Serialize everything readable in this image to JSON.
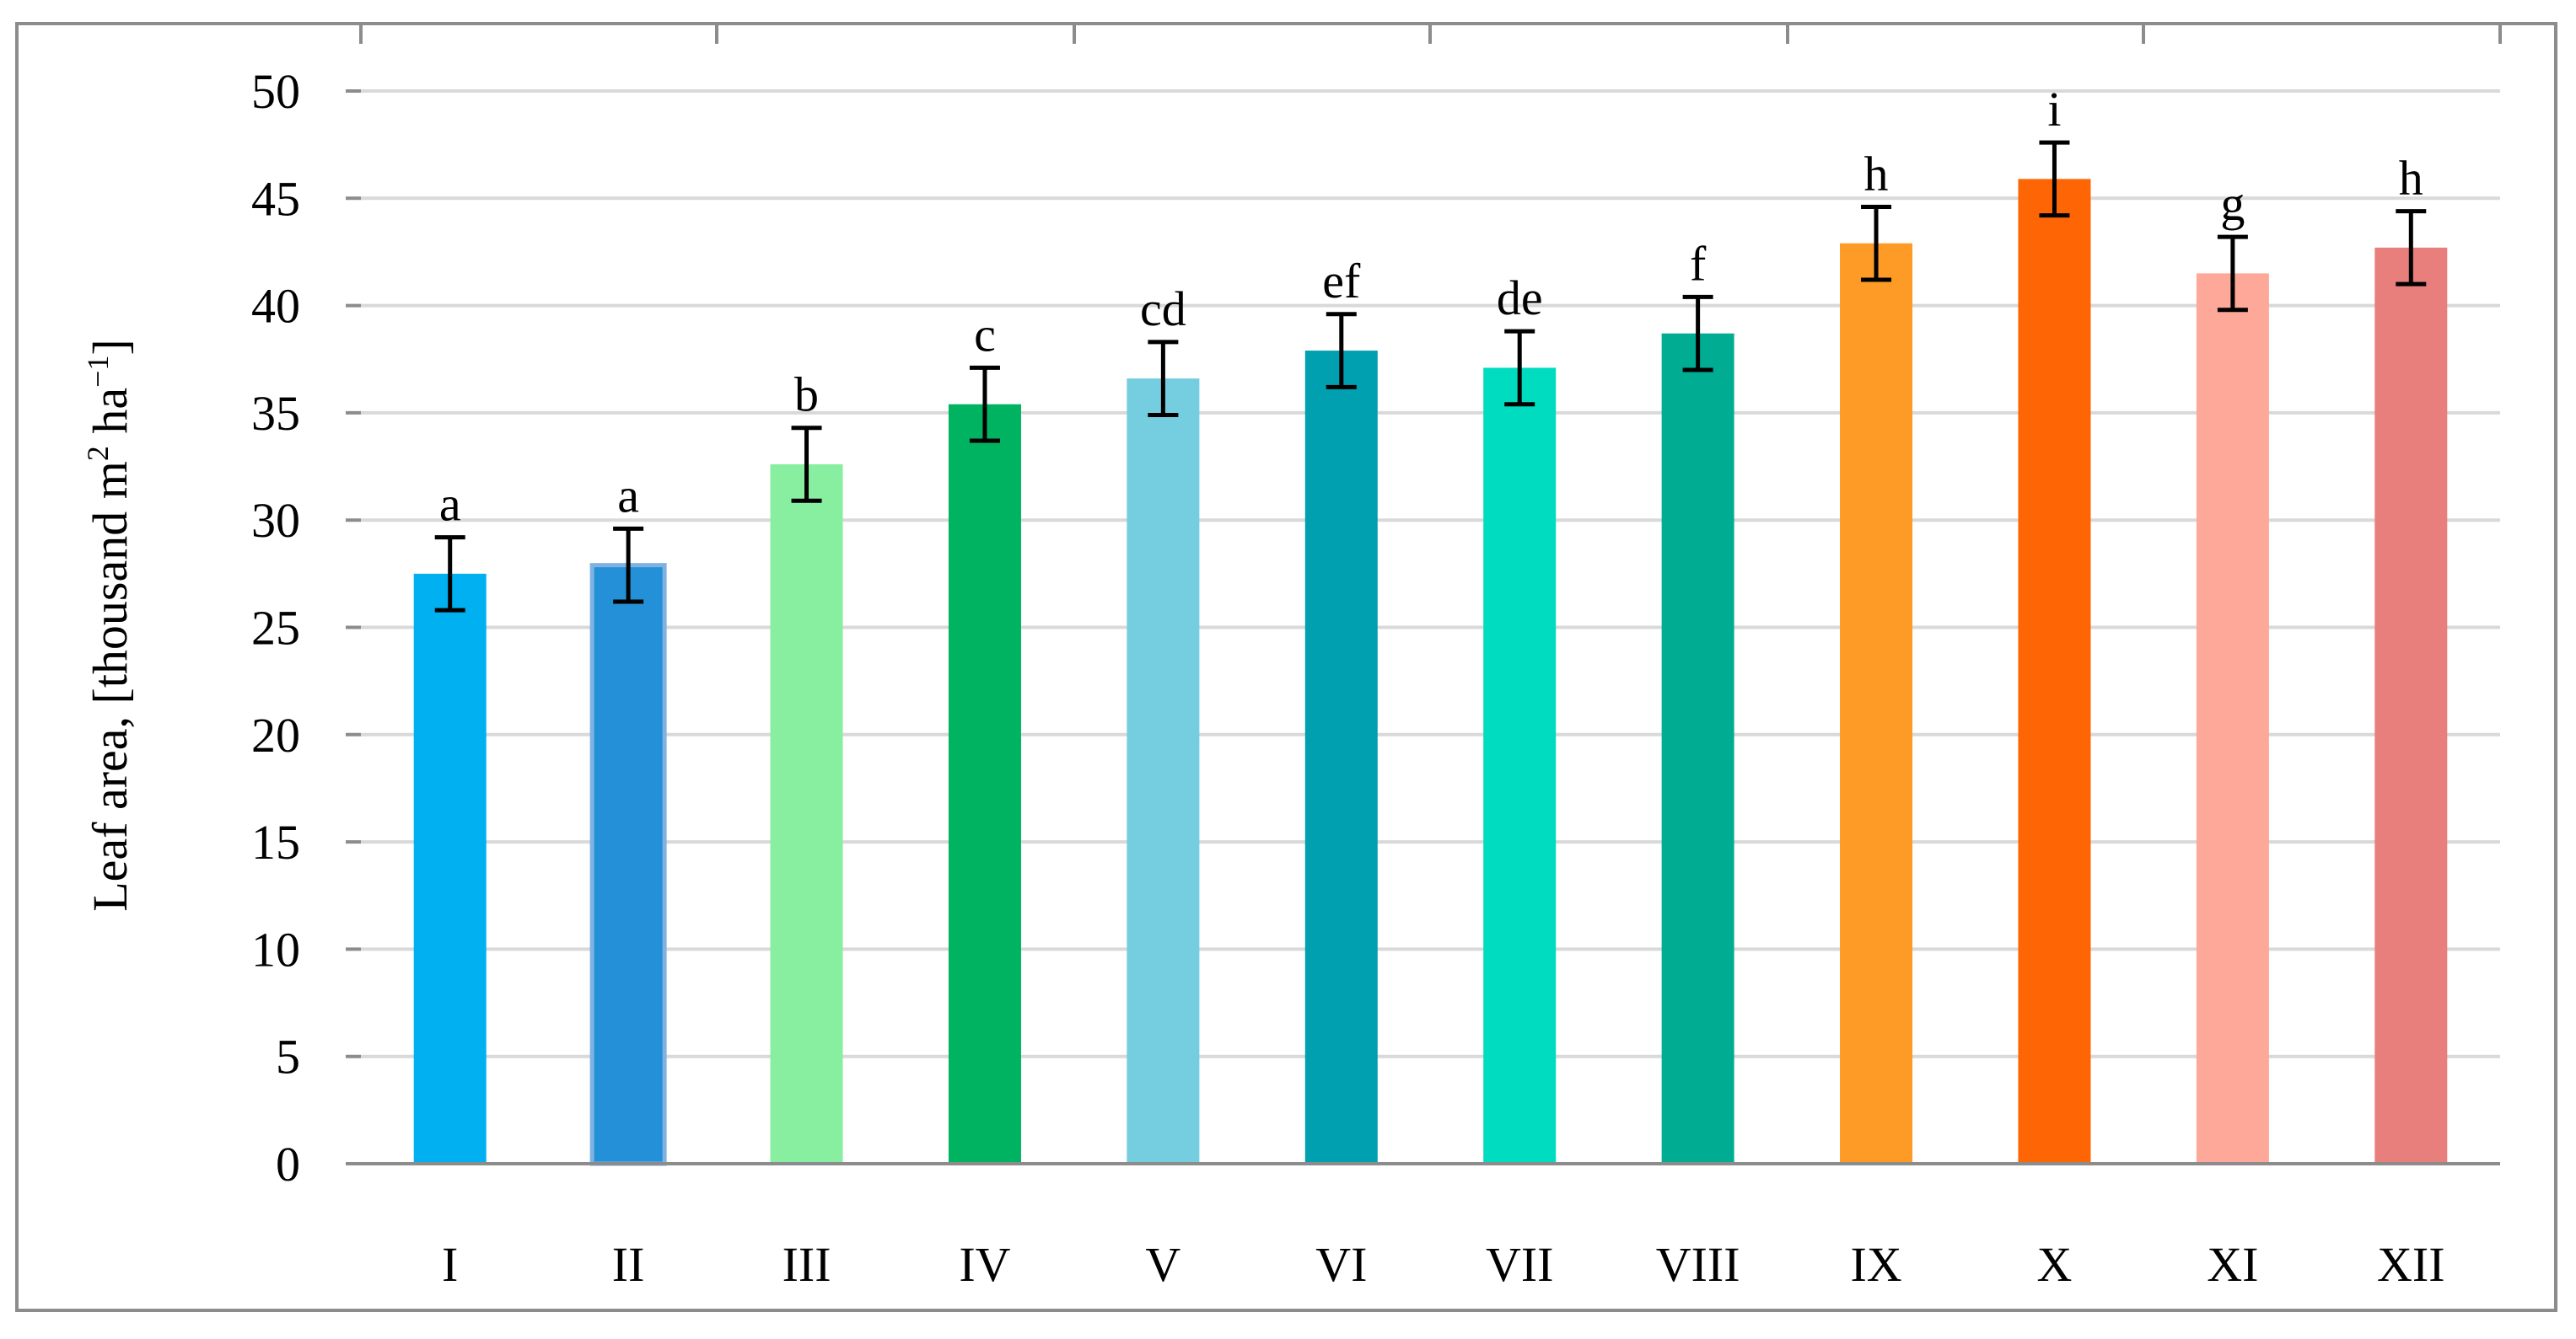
{
  "chart_data": {
    "type": "bar",
    "title": "",
    "xlabel": "",
    "ylabel_main": "Leaf area, [thousand  m",
    "ylabel_sup1": "2",
    "ylabel_mid": " ha",
    "ylabel_sup2": "−1",
    "ylabel_end": "]",
    "ylim": [
      0,
      50
    ],
    "yticks": [
      "0",
      "5",
      "10",
      "15",
      "20",
      "25",
      "30",
      "35",
      "40",
      "45",
      "50"
    ],
    "grid": true,
    "categories": [
      "I",
      "II",
      "III",
      "IV",
      "V",
      "VI",
      "VII",
      "VIII",
      "IX",
      "X",
      "XI",
      "XII"
    ],
    "values": [
      27.5,
      27.9,
      32.6,
      35.4,
      36.6,
      37.9,
      37.1,
      38.7,
      42.9,
      45.9,
      41.5,
      42.7
    ],
    "errors": [
      1.7,
      1.7,
      1.7,
      1.7,
      1.7,
      1.7,
      1.7,
      1.7,
      1.7,
      1.7,
      1.7,
      1.7
    ],
    "letters": [
      "a",
      "a",
      "b",
      "c",
      "cd",
      "ef",
      "de",
      "f",
      "h",
      "i",
      "g",
      "h"
    ],
    "colors": [
      "#00b0f0",
      "#2390d8",
      "#88eea0",
      "#00b361",
      "#75cde0",
      "#00a0b0",
      "#00dcc0",
      "#00ad92",
      "#fd9b26",
      "#fd6505",
      "#fda898",
      "#e87f7d"
    ]
  }
}
